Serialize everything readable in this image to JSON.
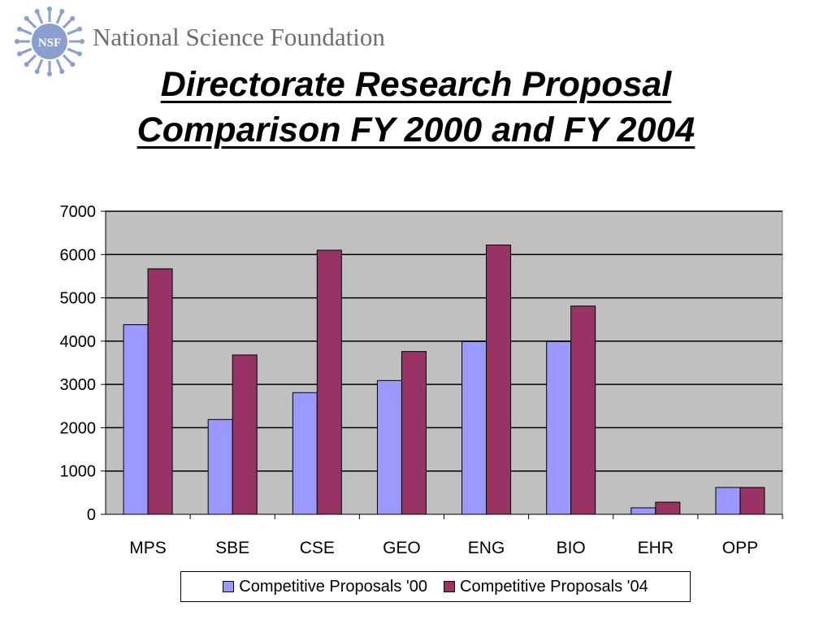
{
  "header": {
    "org_name": "National Science Foundation",
    "logo_text": "NSF"
  },
  "title_line1": "Directorate Research Proposal",
  "title_line2": "Comparison FY 2000 and FY 2004",
  "colors": {
    "series_00": "#9999ff",
    "series_04": "#993366",
    "plot_bg": "#c0c0c0",
    "logo": "#8a9fd0"
  },
  "chart_data": {
    "type": "bar",
    "categories": [
      "MPS",
      "SBE",
      "CSE",
      "GEO",
      "ENG",
      "BIO",
      "EHR",
      "OPP"
    ],
    "series": [
      {
        "name": "Competitive Proposals '00",
        "values": [
          4380,
          2190,
          2810,
          3090,
          3990,
          3990,
          150,
          620
        ]
      },
      {
        "name": "Competitive Proposals '04",
        "values": [
          5670,
          3680,
          6100,
          3760,
          6220,
          4810,
          280,
          620
        ]
      }
    ],
    "yticks": [
      0,
      1000,
      2000,
      3000,
      4000,
      5000,
      6000,
      7000
    ],
    "ylim": [
      0,
      7000
    ],
    "grid": true,
    "legend_position": "bottom"
  }
}
